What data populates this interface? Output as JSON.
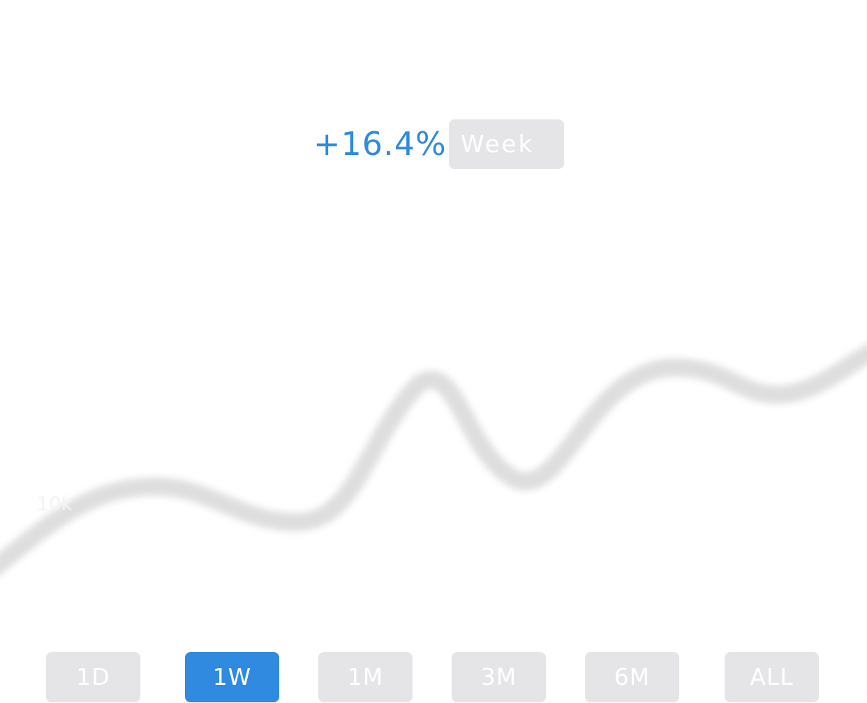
{
  "header": {
    "change_value": "+16.4%",
    "period_label": "Week"
  },
  "chart_data": {
    "type": "line",
    "y_tick_label": "10k",
    "y_tick_value": 10000
  },
  "range_selector": {
    "options": [
      "1D",
      "1W",
      "1M",
      "3M",
      "6M",
      "ALL"
    ],
    "selected": "1W"
  },
  "colors": {
    "accent": "#2f8ae0",
    "pill_background": "#e5e5e7",
    "line": "#d9d9d9"
  }
}
